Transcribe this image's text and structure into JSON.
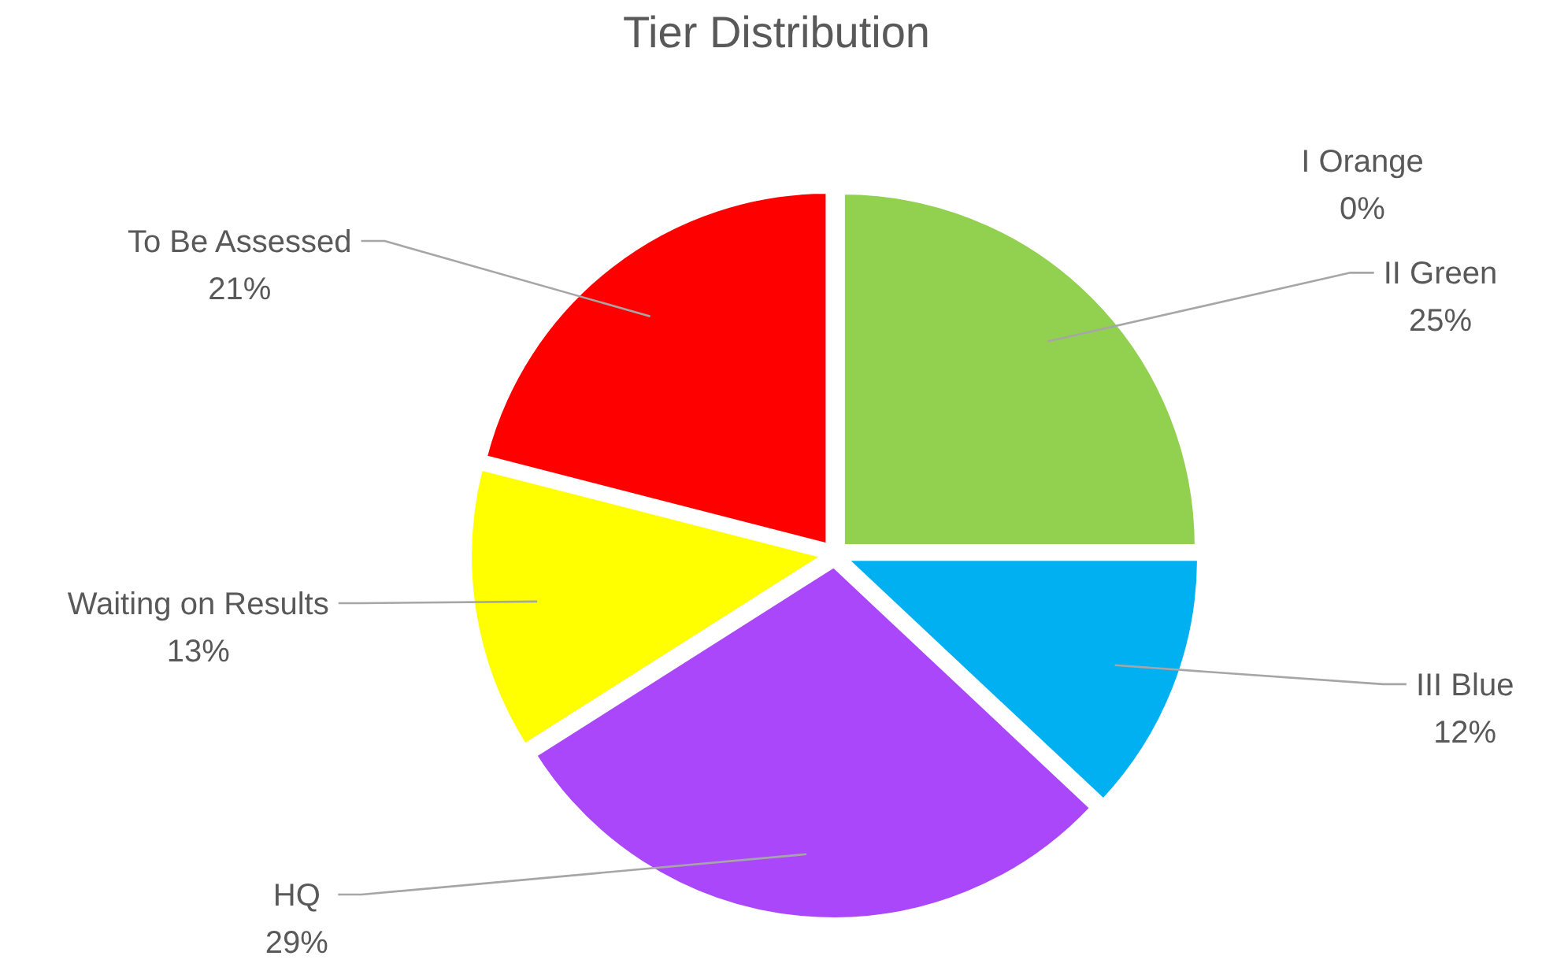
{
  "chart_data": {
    "type": "pie",
    "title": "Tier Distribution",
    "categories": [
      "I Orange",
      "II Green",
      "III Blue",
      "HQ",
      "Waiting on Results",
      "To Be Assessed"
    ],
    "values": [
      0,
      25,
      12,
      29,
      13,
      21
    ],
    "value_labels": [
      "0%",
      "25%",
      "12%",
      "29%",
      "13%",
      "21%"
    ],
    "colors": [
      "#ffc000",
      "#92d050",
      "#00b0f0",
      "#ab47fb",
      "#ffff00",
      "#ff0000"
    ]
  }
}
